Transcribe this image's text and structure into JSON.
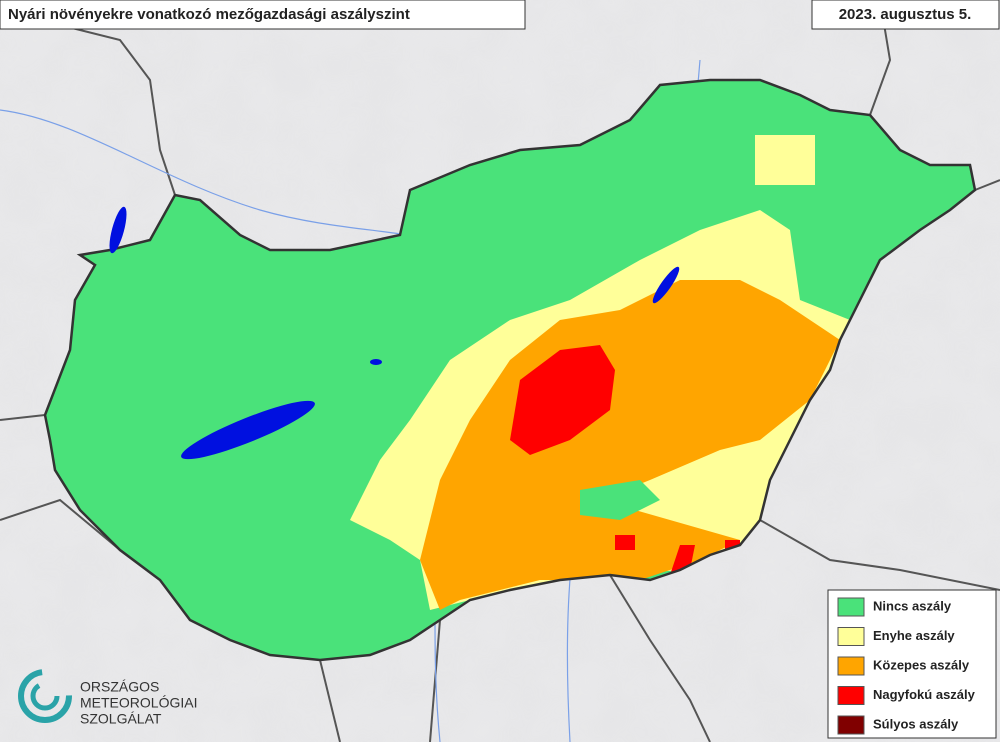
{
  "header": {
    "title": "Nyári növényekre vonatkozó mezőgazdasági aszályszint",
    "date": "2023. augusztus 5."
  },
  "legend": [
    {
      "label": "Nincs aszály",
      "color": "#4ae27a"
    },
    {
      "label": "Enyhe aszály",
      "color": "#ffff99"
    },
    {
      "label": "Közepes aszály",
      "color": "#ffa500"
    },
    {
      "label": "Nagyfokú aszály",
      "color": "#ff0000"
    },
    {
      "label": "Súlyos aszály",
      "color": "#800000"
    }
  ],
  "logo": {
    "lines": [
      "ORSZÁGOS",
      "METEOROLÓGIAI",
      "SZOLGÁLAT"
    ]
  }
}
